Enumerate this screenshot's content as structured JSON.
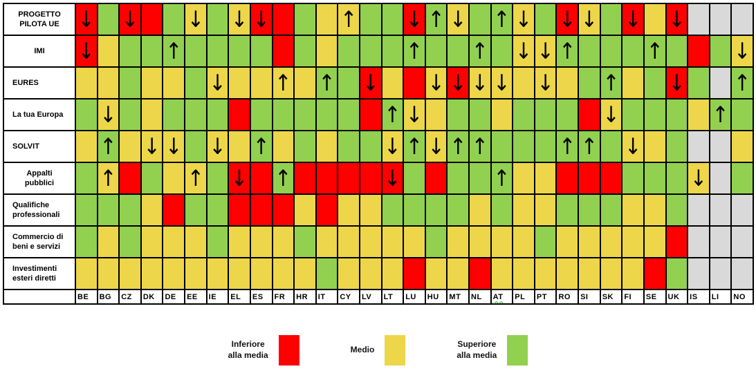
{
  "colors": {
    "inferiore_red": "#FF0000",
    "medio_yellow": "#EDD649",
    "superiore_green": "#92D050",
    "no_data_gray": "#D9D9D9",
    "grid_black": "#000000"
  },
  "legend": {
    "items": [
      {
        "label": "Inferiore\nalla media",
        "color": "#FF0000"
      },
      {
        "label": "Medio",
        "color": "#EDD649"
      },
      {
        "label": "Superiore\nalla media",
        "color": "#92D050"
      }
    ]
  },
  "chart_data": {
    "type": "heatmap",
    "columns": [
      "BE",
      "BG",
      "CZ",
      "DK",
      "DE",
      "EE",
      "IE",
      "EL",
      "ES",
      "FR",
      "HR",
      "IT",
      "CY",
      "LV",
      "LT",
      "LU",
      "HU",
      "MT",
      "NL",
      "AT",
      "PL",
      "PT",
      "RO",
      "SI",
      "SK",
      "FI",
      "SE",
      "UK",
      "IS",
      "LI",
      "NO"
    ],
    "spellcheck_underlined_code": "AT",
    "cell_encoding": {
      "R": "inferiore_red",
      "Y": "medio_yellow",
      "G": "superiore_green",
      "X": "no_data_gray"
    },
    "arrow_glyphs": {
      "u": "↑",
      "d": "↓"
    },
    "rows": [
      {
        "label": "PROGETTO\nPILOTA UE",
        "align": "center",
        "cells": [
          "Rd",
          "G",
          "Rd",
          "R",
          "G",
          "Yd",
          "G",
          "Yd",
          "Rd",
          "R",
          "G",
          "Y",
          "Yu",
          "G",
          "G",
          "Rd",
          "Gu",
          "Yd",
          "G",
          "Gu",
          "Yd",
          "G",
          "Rd",
          "Yd",
          "G",
          "Rd",
          "Y",
          "Rd",
          "X",
          "X",
          "X"
        ]
      },
      {
        "label": "IMI",
        "align": "center",
        "cells": [
          "Rd",
          "Y",
          "G",
          "G",
          "Gu",
          "G",
          "G",
          "G",
          "G",
          "R",
          "G",
          "Y",
          "G",
          "G",
          "G",
          "Gu",
          "G",
          "G",
          "Gu",
          "G",
          "Yd",
          "Yd",
          "Gu",
          "G",
          "G",
          "G",
          "Gu",
          "G",
          "R",
          "G",
          "Yd"
        ]
      },
      {
        "label": "EURES",
        "align": "left",
        "cells": [
          "Y",
          "Y",
          "G",
          "Y",
          "Y",
          "G",
          "Yd",
          "Y",
          "Y",
          "Yu",
          "Y",
          "Gu",
          "G",
          "Rd",
          "Y",
          "R",
          "Yd",
          "Rd",
          "Yd",
          "Yd",
          "Y",
          "Yd",
          "Y",
          "G",
          "Gu",
          "Y",
          "G",
          "Rd",
          "G",
          "X",
          "Gu"
        ]
      },
      {
        "label": "La tua Europa",
        "align": "left",
        "cells": [
          "G",
          "Yd",
          "G",
          "Y",
          "G",
          "G",
          "G",
          "R",
          "G",
          "G",
          "G",
          "G",
          "G",
          "R",
          "Gu",
          "Yd",
          "Y",
          "G",
          "G",
          "Y",
          "G",
          "G",
          "G",
          "R",
          "Yd",
          "G",
          "G",
          "G",
          "Y",
          "Gu",
          "G"
        ]
      },
      {
        "label": "SOLVIT",
        "align": "left",
        "cells": [
          "Y",
          "Gu",
          "Y",
          "Yd",
          "Yd",
          "G",
          "Yd",
          "Y",
          "Gu",
          "Y",
          "G",
          "Y",
          "G",
          "G",
          "Yd",
          "Gu",
          "Yd",
          "Gu",
          "Gu",
          "G",
          "G",
          "G",
          "Gu",
          "Gu",
          "G",
          "Yd",
          "Y",
          "G",
          "X",
          "X",
          "Y"
        ]
      },
      {
        "label": "Appalti\npubblici",
        "align": "center",
        "cells": [
          "G",
          "Yu",
          "R",
          "G",
          "Y",
          "Yu",
          "G",
          "Rd",
          "R",
          "Gu",
          "R",
          "R",
          "R",
          "R",
          "Rd",
          "G",
          "R",
          "G",
          "G",
          "Gu",
          "Y",
          "Y",
          "R",
          "R",
          "R",
          "G",
          "G",
          "G",
          "Yd",
          "X",
          "G"
        ]
      },
      {
        "label": "Qualifiche\nprofessionali",
        "align": "left",
        "cells": [
          "G",
          "G",
          "G",
          "Y",
          "R",
          "G",
          "G",
          "R",
          "R",
          "R",
          "Y",
          "R",
          "Y",
          "Y",
          "G",
          "G",
          "G",
          "G",
          "Y",
          "G",
          "Y",
          "Y",
          "G",
          "G",
          "G",
          "Y",
          "Y",
          "G",
          "X",
          "X",
          "X"
        ]
      },
      {
        "label": "Commercio di\nbeni e servizi",
        "align": "left",
        "cells": [
          "G",
          "Y",
          "G",
          "Y",
          "Y",
          "Y",
          "G",
          "Y",
          "Y",
          "Y",
          "G",
          "Y",
          "Y",
          "Y",
          "Y",
          "Y",
          "G",
          "Y",
          "Y",
          "Y",
          "Y",
          "G",
          "Y",
          "Y",
          "Y",
          "Y",
          "Y",
          "R",
          "X",
          "X",
          "X"
        ]
      },
      {
        "label": "Investimenti\nesteri diretti",
        "align": "left",
        "cells": [
          "Y",
          "Y",
          "Y",
          "Y",
          "Y",
          "Y",
          "Y",
          "Y",
          "Y",
          "Y",
          "Y",
          "G",
          "Y",
          "Y",
          "Y",
          "R",
          "Y",
          "Y",
          "R",
          "Y",
          "Y",
          "Y",
          "Y",
          "Y",
          "Y",
          "Y",
          "R",
          "G",
          "X",
          "X",
          "X"
        ]
      }
    ]
  }
}
